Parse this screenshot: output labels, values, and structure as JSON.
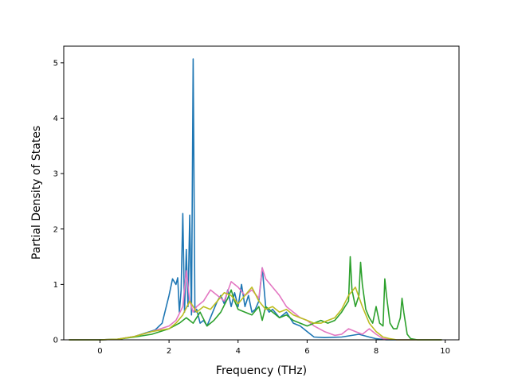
{
  "chart_data": {
    "type": "line",
    "title": "",
    "xlabel": "Frequency (THz)",
    "ylabel": "Partial Density of States",
    "xlim": [
      -1.05,
      10.4
    ],
    "ylim": [
      0,
      5.3
    ],
    "xticks": [
      0,
      2,
      4,
      6,
      8,
      10
    ],
    "yticks": [
      0,
      1,
      2,
      3,
      4,
      5
    ],
    "grid": false,
    "legend": "none",
    "series": [
      {
        "color": "#1f77b4",
        "x": [
          -0.9,
          0.0,
          0.5,
          1.0,
          1.3,
          1.6,
          1.8,
          1.9,
          2.0,
          2.1,
          2.2,
          2.25,
          2.3,
          2.35,
          2.4,
          2.45,
          2.5,
          2.55,
          2.6,
          2.65,
          2.7,
          2.75,
          2.8,
          2.9,
          3.0,
          3.1,
          3.2,
          3.3,
          3.4,
          3.5,
          3.6,
          3.7,
          3.8,
          3.9,
          4.0,
          4.1,
          4.2,
          4.3,
          4.4,
          4.5,
          4.6,
          4.7,
          4.8,
          4.9,
          5.0,
          5.2,
          5.4,
          5.6,
          5.8,
          6.0,
          6.2,
          6.5,
          7.0,
          7.5,
          7.8,
          8.0,
          8.3,
          9.0,
          9.9
        ],
        "values": [
          0,
          0,
          0.01,
          0.06,
          0.12,
          0.18,
          0.3,
          0.55,
          0.8,
          1.1,
          1.0,
          1.12,
          0.5,
          0.9,
          2.28,
          0.5,
          1.63,
          0.6,
          2.25,
          0.45,
          5.07,
          0.5,
          0.55,
          0.3,
          0.35,
          0.25,
          0.4,
          0.55,
          0.7,
          0.8,
          0.65,
          0.9,
          0.6,
          0.85,
          0.6,
          1.0,
          0.6,
          0.8,
          0.5,
          0.55,
          0.7,
          1.3,
          0.6,
          0.5,
          0.55,
          0.4,
          0.5,
          0.3,
          0.25,
          0.15,
          0.05,
          0.04,
          0.05,
          0.1,
          0.05,
          0.02,
          0.0,
          0,
          0
        ]
      },
      {
        "color": "#e377c2",
        "x": [
          -0.9,
          0.0,
          0.5,
          1.0,
          1.5,
          2.0,
          2.2,
          2.4,
          2.5,
          2.6,
          2.7,
          2.8,
          3.0,
          3.2,
          3.4,
          3.6,
          3.8,
          4.0,
          4.2,
          4.4,
          4.6,
          4.7,
          4.8,
          5.0,
          5.2,
          5.4,
          5.6,
          5.8,
          6.0,
          6.2,
          6.5,
          6.8,
          7.0,
          7.2,
          7.4,
          7.6,
          7.8,
          8.0,
          8.2,
          8.4,
          8.6,
          8.8,
          9.0,
          9.9
        ],
        "values": [
          0,
          0,
          0.01,
          0.06,
          0.15,
          0.25,
          0.35,
          0.6,
          1.25,
          0.7,
          0.5,
          0.6,
          0.7,
          0.9,
          0.8,
          0.7,
          1.05,
          0.95,
          0.8,
          0.9,
          0.75,
          1.3,
          1.1,
          0.95,
          0.8,
          0.6,
          0.5,
          0.4,
          0.35,
          0.25,
          0.15,
          0.08,
          0.1,
          0.2,
          0.15,
          0.1,
          0.2,
          0.1,
          0.02,
          0.01,
          0.0,
          0.0,
          0,
          0
        ]
      },
      {
        "color": "#2ca02c",
        "x": [
          -0.9,
          0.0,
          0.5,
          1.0,
          1.5,
          2.0,
          2.3,
          2.5,
          2.7,
          2.9,
          3.1,
          3.3,
          3.5,
          3.7,
          3.8,
          3.9,
          4.0,
          4.2,
          4.4,
          4.6,
          4.7,
          4.8,
          5.0,
          5.2,
          5.4,
          5.6,
          5.8,
          6.0,
          6.2,
          6.4,
          6.6,
          6.8,
          7.0,
          7.1,
          7.2,
          7.25,
          7.3,
          7.4,
          7.5,
          7.55,
          7.6,
          7.7,
          7.8,
          7.9,
          8.0,
          8.1,
          8.2,
          8.25,
          8.3,
          8.4,
          8.5,
          8.6,
          8.7,
          8.75,
          8.8,
          8.9,
          9.0,
          9.2,
          9.9
        ],
        "values": [
          0,
          0,
          0.01,
          0.05,
          0.1,
          0.2,
          0.3,
          0.4,
          0.3,
          0.5,
          0.25,
          0.35,
          0.5,
          0.75,
          0.9,
          0.7,
          0.55,
          0.5,
          0.45,
          0.6,
          0.35,
          0.6,
          0.5,
          0.4,
          0.45,
          0.35,
          0.3,
          0.25,
          0.3,
          0.35,
          0.3,
          0.35,
          0.5,
          0.6,
          0.7,
          1.5,
          0.9,
          0.6,
          0.8,
          1.4,
          1.0,
          0.55,
          0.4,
          0.3,
          0.6,
          0.3,
          0.25,
          1.1,
          0.8,
          0.3,
          0.2,
          0.2,
          0.4,
          0.75,
          0.5,
          0.1,
          0.02,
          0.0,
          0
        ]
      },
      {
        "color": "#bcbd22",
        "x": [
          -0.9,
          0.0,
          0.5,
          1.0,
          1.5,
          2.0,
          2.2,
          2.4,
          2.6,
          2.8,
          3.0,
          3.2,
          3.4,
          3.6,
          3.8,
          4.0,
          4.2,
          4.4,
          4.6,
          4.8,
          5.0,
          5.2,
          5.4,
          5.6,
          5.8,
          6.0,
          6.2,
          6.4,
          6.6,
          6.8,
          7.0,
          7.2,
          7.4,
          7.6,
          7.8,
          8.0,
          8.2,
          8.4,
          8.6,
          8.8,
          9.0,
          9.9
        ],
        "values": [
          0,
          0,
          0.01,
          0.06,
          0.15,
          0.2,
          0.3,
          0.45,
          0.7,
          0.5,
          0.6,
          0.55,
          0.7,
          0.85,
          0.8,
          0.65,
          0.8,
          0.95,
          0.7,
          0.55,
          0.6,
          0.5,
          0.55,
          0.45,
          0.4,
          0.35,
          0.3,
          0.3,
          0.35,
          0.4,
          0.55,
          0.8,
          0.95,
          0.6,
          0.3,
          0.15,
          0.05,
          0.02,
          0.0,
          0.0,
          0,
          0
        ]
      }
    ]
  }
}
